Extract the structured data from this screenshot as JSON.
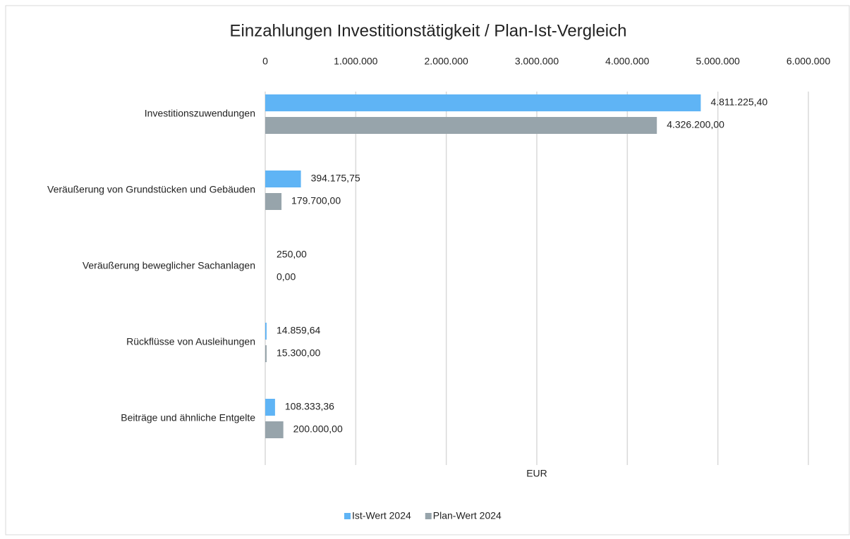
{
  "chart_data": {
    "type": "bar",
    "orientation": "horizontal",
    "title": "Einzahlungen Investitionstätigkeit / Plan-Ist-Vergleich",
    "x_label": "EUR",
    "categories": [
      "Investitionszuwendungen",
      "Veräußerung von Grundstücken und Gebäuden",
      "Veräußerung beweglicher Sachanlagen",
      "Rückflüsse von Ausleihungen",
      "Beiträge und ähnliche Entgelte"
    ],
    "series": [
      {
        "name": "Ist-Wert 2024",
        "color": "#5fb4f5",
        "values": [
          4811225.4,
          394175.75,
          250.0,
          14859.64,
          108333.36
        ],
        "value_labels": [
          "4.811.225,40",
          "394.175,75",
          "250,00",
          "14.859,64",
          "108.333,36"
        ]
      },
      {
        "name": "Plan-Wert 2024",
        "color": "#97a4ab",
        "values": [
          4326200.0,
          179700.0,
          0,
          15300.0,
          200000.0
        ],
        "value_labels": [
          "4.326.200,00",
          "179.700,00",
          "0,00",
          "15.300,00",
          "200.000,00"
        ]
      }
    ],
    "xlim": [
      0,
      6000000
    ],
    "xticks": [
      0,
      {
        "value": 1000000,
        "label": "1.000.000"
      },
      {
        "value": 2000000,
        "label": "2.000.000"
      },
      {
        "value": 3000000,
        "label": "3.000.000"
      },
      {
        "value": 4000000,
        "label": "4.000.000"
      },
      {
        "value": 5000000,
        "label": "5.000.000"
      },
      {
        "value": 6000000,
        "label": "6.000.000"
      }
    ],
    "grid": true,
    "legend": "bottom"
  }
}
